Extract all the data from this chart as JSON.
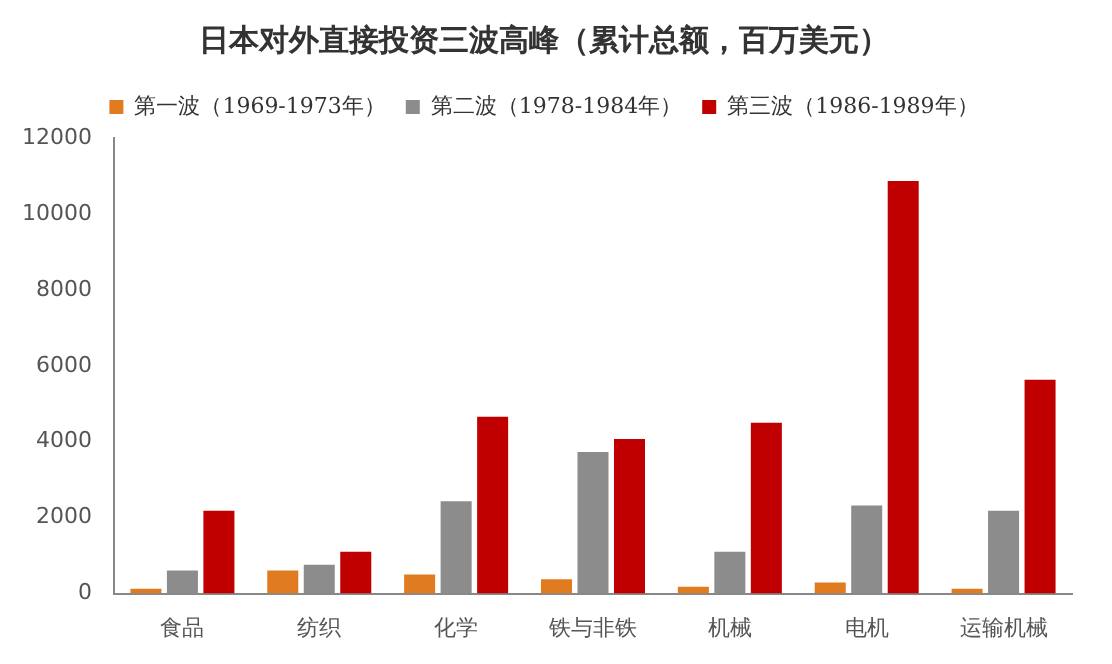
{
  "chart_data": {
    "type": "bar",
    "title": "日本对外直接投资三波高峰（累计总额，百万美元）",
    "categories": [
      "食品",
      "纺织",
      "化学",
      "铁与非铁",
      "机械",
      "电机",
      "运输机械"
    ],
    "series": [
      {
        "name": "第一波（1969-1973年）",
        "color": "#e07b1f",
        "values": [
          130,
          610,
          500,
          380,
          180,
          290,
          130
        ]
      },
      {
        "name": "第二波（1978-1984年）",
        "color": "#8c8c8c",
        "values": [
          610,
          760,
          2430,
          3730,
          1100,
          2320,
          2180
        ]
      },
      {
        "name": "第三波（1986-1989年）",
        "color": "#c00000",
        "values": [
          2180,
          1100,
          4660,
          4070,
          4500,
          10870,
          5630
        ]
      }
    ],
    "ylim": [
      0,
      12000
    ],
    "yticks": [
      0,
      2000,
      4000,
      6000,
      8000,
      10000,
      12000
    ],
    "grid": false,
    "legend": "top"
  }
}
